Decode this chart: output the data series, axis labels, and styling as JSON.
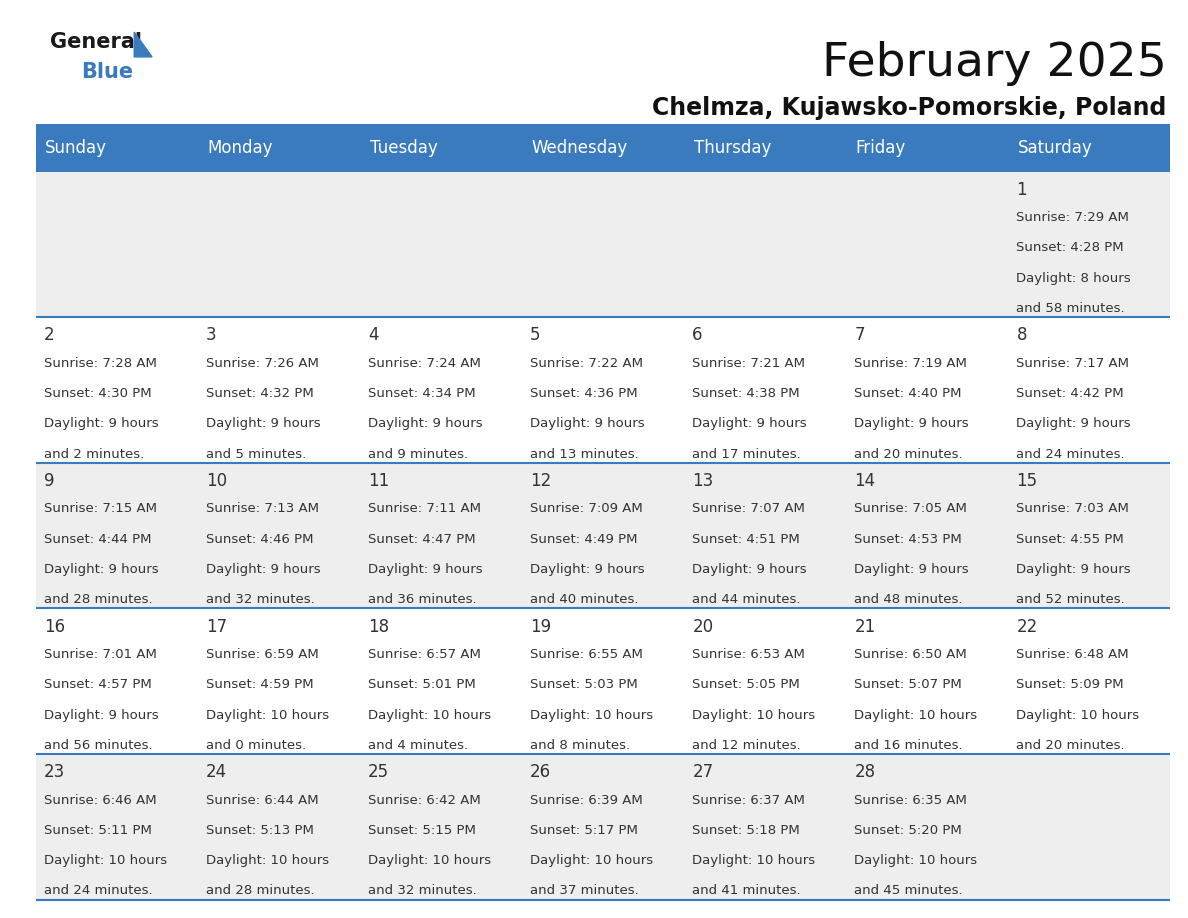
{
  "title": "February 2025",
  "subtitle": "Chelmza, Kujawsko-Pomorskie, Poland",
  "header_color": "#3a7abf",
  "header_text_color": "#ffffff",
  "background_color": "#ffffff",
  "cell_bg_even": "#eeeeee",
  "cell_bg_odd": "#ffffff",
  "day_names": [
    "Sunday",
    "Monday",
    "Tuesday",
    "Wednesday",
    "Thursday",
    "Friday",
    "Saturday"
  ],
  "days": [
    {
      "day": 1,
      "col": 6,
      "row": 0,
      "sunrise": "7:29 AM",
      "sunset": "4:28 PM",
      "daylight": "8 hours and 58 minutes."
    },
    {
      "day": 2,
      "col": 0,
      "row": 1,
      "sunrise": "7:28 AM",
      "sunset": "4:30 PM",
      "daylight": "9 hours and 2 minutes."
    },
    {
      "day": 3,
      "col": 1,
      "row": 1,
      "sunrise": "7:26 AM",
      "sunset": "4:32 PM",
      "daylight": "9 hours and 5 minutes."
    },
    {
      "day": 4,
      "col": 2,
      "row": 1,
      "sunrise": "7:24 AM",
      "sunset": "4:34 PM",
      "daylight": "9 hours and 9 minutes."
    },
    {
      "day": 5,
      "col": 3,
      "row": 1,
      "sunrise": "7:22 AM",
      "sunset": "4:36 PM",
      "daylight": "9 hours and 13 minutes."
    },
    {
      "day": 6,
      "col": 4,
      "row": 1,
      "sunrise": "7:21 AM",
      "sunset": "4:38 PM",
      "daylight": "9 hours and 17 minutes."
    },
    {
      "day": 7,
      "col": 5,
      "row": 1,
      "sunrise": "7:19 AM",
      "sunset": "4:40 PM",
      "daylight": "9 hours and 20 minutes."
    },
    {
      "day": 8,
      "col": 6,
      "row": 1,
      "sunrise": "7:17 AM",
      "sunset": "4:42 PM",
      "daylight": "9 hours and 24 minutes."
    },
    {
      "day": 9,
      "col": 0,
      "row": 2,
      "sunrise": "7:15 AM",
      "sunset": "4:44 PM",
      "daylight": "9 hours and 28 minutes."
    },
    {
      "day": 10,
      "col": 1,
      "row": 2,
      "sunrise": "7:13 AM",
      "sunset": "4:46 PM",
      "daylight": "9 hours and 32 minutes."
    },
    {
      "day": 11,
      "col": 2,
      "row": 2,
      "sunrise": "7:11 AM",
      "sunset": "4:47 PM",
      "daylight": "9 hours and 36 minutes."
    },
    {
      "day": 12,
      "col": 3,
      "row": 2,
      "sunrise": "7:09 AM",
      "sunset": "4:49 PM",
      "daylight": "9 hours and 40 minutes."
    },
    {
      "day": 13,
      "col": 4,
      "row": 2,
      "sunrise": "7:07 AM",
      "sunset": "4:51 PM",
      "daylight": "9 hours and 44 minutes."
    },
    {
      "day": 14,
      "col": 5,
      "row": 2,
      "sunrise": "7:05 AM",
      "sunset": "4:53 PM",
      "daylight": "9 hours and 48 minutes."
    },
    {
      "day": 15,
      "col": 6,
      "row": 2,
      "sunrise": "7:03 AM",
      "sunset": "4:55 PM",
      "daylight": "9 hours and 52 minutes."
    },
    {
      "day": 16,
      "col": 0,
      "row": 3,
      "sunrise": "7:01 AM",
      "sunset": "4:57 PM",
      "daylight": "9 hours and 56 minutes."
    },
    {
      "day": 17,
      "col": 1,
      "row": 3,
      "sunrise": "6:59 AM",
      "sunset": "4:59 PM",
      "daylight": "10 hours and 0 minutes."
    },
    {
      "day": 18,
      "col": 2,
      "row": 3,
      "sunrise": "6:57 AM",
      "sunset": "5:01 PM",
      "daylight": "10 hours and 4 minutes."
    },
    {
      "day": 19,
      "col": 3,
      "row": 3,
      "sunrise": "6:55 AM",
      "sunset": "5:03 PM",
      "daylight": "10 hours and 8 minutes."
    },
    {
      "day": 20,
      "col": 4,
      "row": 3,
      "sunrise": "6:53 AM",
      "sunset": "5:05 PM",
      "daylight": "10 hours and 12 minutes."
    },
    {
      "day": 21,
      "col": 5,
      "row": 3,
      "sunrise": "6:50 AM",
      "sunset": "5:07 PM",
      "daylight": "10 hours and 16 minutes."
    },
    {
      "day": 22,
      "col": 6,
      "row": 3,
      "sunrise": "6:48 AM",
      "sunset": "5:09 PM",
      "daylight": "10 hours and 20 minutes."
    },
    {
      "day": 23,
      "col": 0,
      "row": 4,
      "sunrise": "6:46 AM",
      "sunset": "5:11 PM",
      "daylight": "10 hours and 24 minutes."
    },
    {
      "day": 24,
      "col": 1,
      "row": 4,
      "sunrise": "6:44 AM",
      "sunset": "5:13 PM",
      "daylight": "10 hours and 28 minutes."
    },
    {
      "day": 25,
      "col": 2,
      "row": 4,
      "sunrise": "6:42 AM",
      "sunset": "5:15 PM",
      "daylight": "10 hours and 32 minutes."
    },
    {
      "day": 26,
      "col": 3,
      "row": 4,
      "sunrise": "6:39 AM",
      "sunset": "5:17 PM",
      "daylight": "10 hours and 37 minutes."
    },
    {
      "day": 27,
      "col": 4,
      "row": 4,
      "sunrise": "6:37 AM",
      "sunset": "5:18 PM",
      "daylight": "10 hours and 41 minutes."
    },
    {
      "day": 28,
      "col": 5,
      "row": 4,
      "sunrise": "6:35 AM",
      "sunset": "5:20 PM",
      "daylight": "10 hours and 45 minutes."
    }
  ],
  "num_rows": 5,
  "num_cols": 7,
  "title_fontsize": 34,
  "subtitle_fontsize": 17,
  "dayname_fontsize": 12,
  "day_number_fontsize": 12,
  "info_fontsize": 9.5,
  "logo_general_color": "#1a1a1a",
  "logo_blue_color": "#3a7abf",
  "separator_line_color": "#3a7abf"
}
